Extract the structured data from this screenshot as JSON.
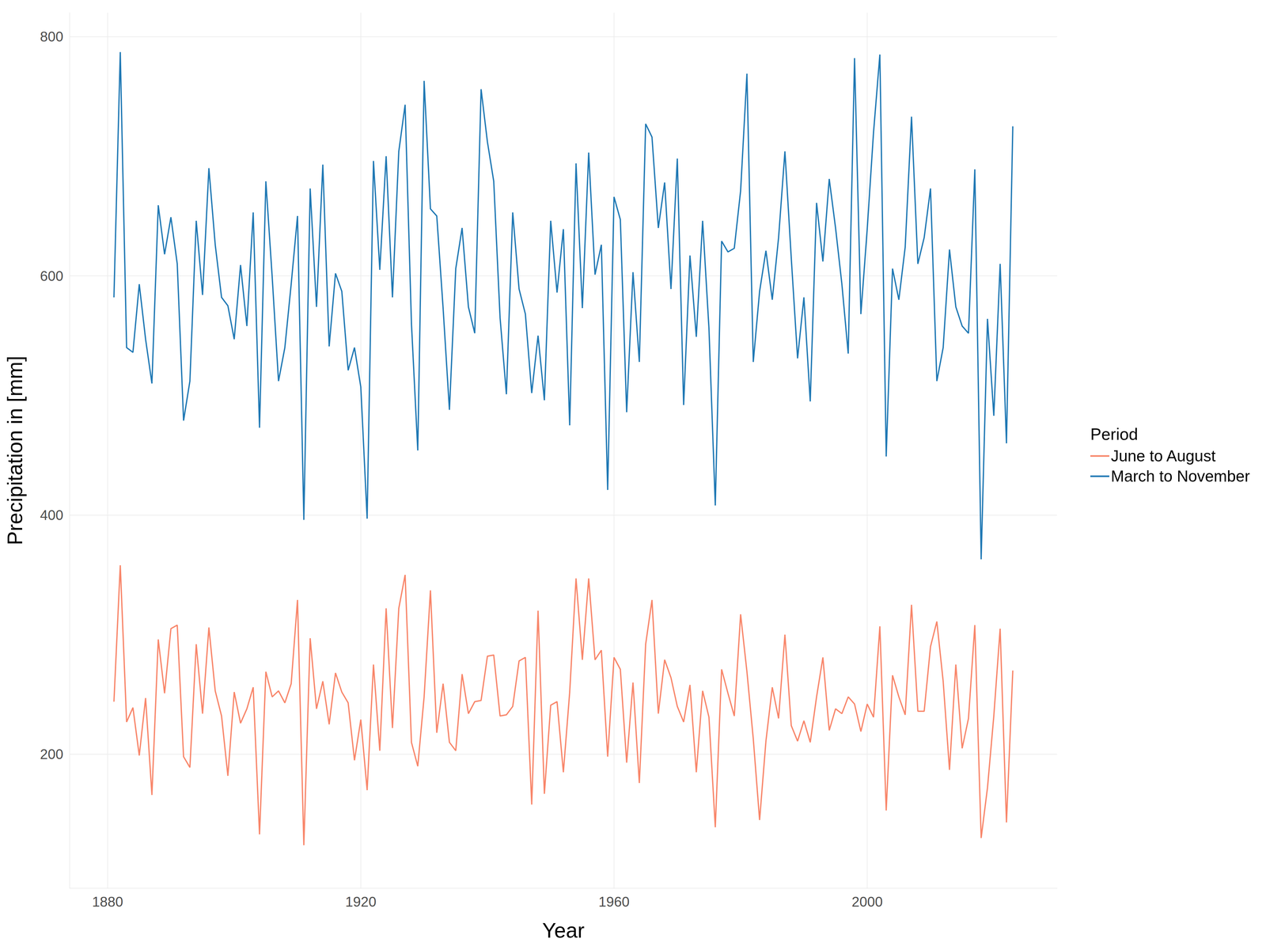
{
  "chart_data": {
    "type": "line",
    "x_label": "Year",
    "y_label": "Precipitation in [mm]",
    "legend_title": "Period",
    "legend": "right",
    "grid": true,
    "xlim": [
      1874,
      2030
    ],
    "xticks": [
      1880,
      1920,
      1960,
      2000
    ],
    "ylim": [
      88,
      820
    ],
    "yticks": [
      200,
      400,
      600,
      800
    ],
    "x": [
      1881,
      1882,
      1883,
      1884,
      1885,
      1886,
      1887,
      1888,
      1889,
      1890,
      1891,
      1892,
      1893,
      1894,
      1895,
      1896,
      1897,
      1898,
      1899,
      1900,
      1901,
      1902,
      1903,
      1904,
      1905,
      1906,
      1907,
      1908,
      1909,
      1910,
      1911,
      1912,
      1913,
      1914,
      1915,
      1916,
      1917,
      1918,
      1919,
      1920,
      1921,
      1922,
      1923,
      1924,
      1925,
      1926,
      1927,
      1928,
      1929,
      1930,
      1931,
      1932,
      1933,
      1934,
      1935,
      1936,
      1937,
      1938,
      1939,
      1940,
      1941,
      1942,
      1943,
      1944,
      1945,
      1946,
      1947,
      1948,
      1949,
      1950,
      1951,
      1952,
      1953,
      1954,
      1955,
      1956,
      1957,
      1958,
      1959,
      1960,
      1961,
      1962,
      1963,
      1964,
      1965,
      1966,
      1967,
      1968,
      1969,
      1970,
      1971,
      1972,
      1973,
      1974,
      1975,
      1976,
      1977,
      1978,
      1979,
      1980,
      1981,
      1982,
      1983,
      1984,
      1985,
      1986,
      1987,
      1988,
      1989,
      1990,
      1991,
      1992,
      1993,
      1994,
      1995,
      1996,
      1997,
      1998,
      1999,
      2000,
      2001,
      2002,
      2003,
      2004,
      2005,
      2006,
      2007,
      2008,
      2009,
      2010,
      2011,
      2012,
      2013,
      2014,
      2015,
      2016,
      2017,
      2018,
      2019,
      2020,
      2021,
      2022,
      2023
    ],
    "series": [
      {
        "name": "June to August",
        "color": "#f8866a",
        "values": [
          244,
          358,
          227,
          239,
          199,
          247,
          166,
          296,
          251,
          305,
          308,
          198,
          189,
          292,
          234,
          306,
          253,
          232,
          182,
          252,
          226,
          238,
          256,
          133,
          269,
          248,
          253,
          243,
          259,
          329,
          124,
          297,
          238,
          261,
          225,
          268,
          252,
          243,
          195,
          229,
          170,
          275,
          203,
          322,
          222,
          322,
          350,
          210,
          190,
          248,
          337,
          218,
          259,
          210,
          203,
          267,
          234,
          244,
          245,
          282,
          283,
          232,
          233,
          240,
          278,
          281,
          158,
          320,
          167,
          241,
          244,
          185,
          252,
          347,
          279,
          347,
          279,
          287,
          198,
          281,
          271,
          193,
          260,
          176,
          292,
          329,
          234,
          279,
          264,
          240,
          227,
          258,
          185,
          253,
          231,
          139,
          271,
          251,
          232,
          317,
          269,
          213,
          145,
          211,
          256,
          230,
          300,
          224,
          211,
          228,
          210,
          248,
          281,
          220,
          238,
          234,
          248,
          242,
          219,
          242,
          231,
          307,
          153,
          266,
          248,
          233,
          325,
          236,
          236,
          290,
          311,
          261,
          187,
          275,
          205,
          230,
          308,
          130,
          172,
          232,
          305,
          143,
          270
        ]
      },
      {
        "name": "March to November",
        "color": "#1f78b4",
        "values": [
          582,
          787,
          540,
          536,
          593,
          547,
          510,
          659,
          618,
          649,
          610,
          479,
          512,
          646,
          584,
          690,
          626,
          582,
          575,
          547,
          609,
          558,
          653,
          473,
          679,
          599,
          512,
          540,
          593,
          650,
          396,
          673,
          574,
          693,
          541,
          602,
          587,
          521,
          540,
          507,
          397,
          696,
          605,
          700,
          582,
          704,
          743,
          560,
          454,
          763,
          656,
          650,
          573,
          488,
          606,
          640,
          574,
          552,
          756,
          712,
          679,
          565,
          501,
          653,
          589,
          568,
          502,
          550,
          496,
          646,
          586,
          639,
          475,
          694,
          573,
          703,
          601,
          626,
          421,
          666,
          647,
          486,
          603,
          528,
          727,
          716,
          640,
          678,
          589,
          698,
          492,
          617,
          549,
          646,
          556,
          408,
          629,
          620,
          623,
          671,
          769,
          528,
          587,
          621,
          580,
          632,
          704,
          615,
          531,
          582,
          495,
          661,
          612,
          681,
          640,
          593,
          535,
          782,
          568,
          639,
          720,
          785,
          449,
          606,
          580,
          624,
          733,
          610,
          632,
          673,
          512,
          540,
          622,
          574,
          558,
          552,
          689,
          363,
          564,
          483,
          610,
          460,
          725
        ]
      }
    ]
  }
}
